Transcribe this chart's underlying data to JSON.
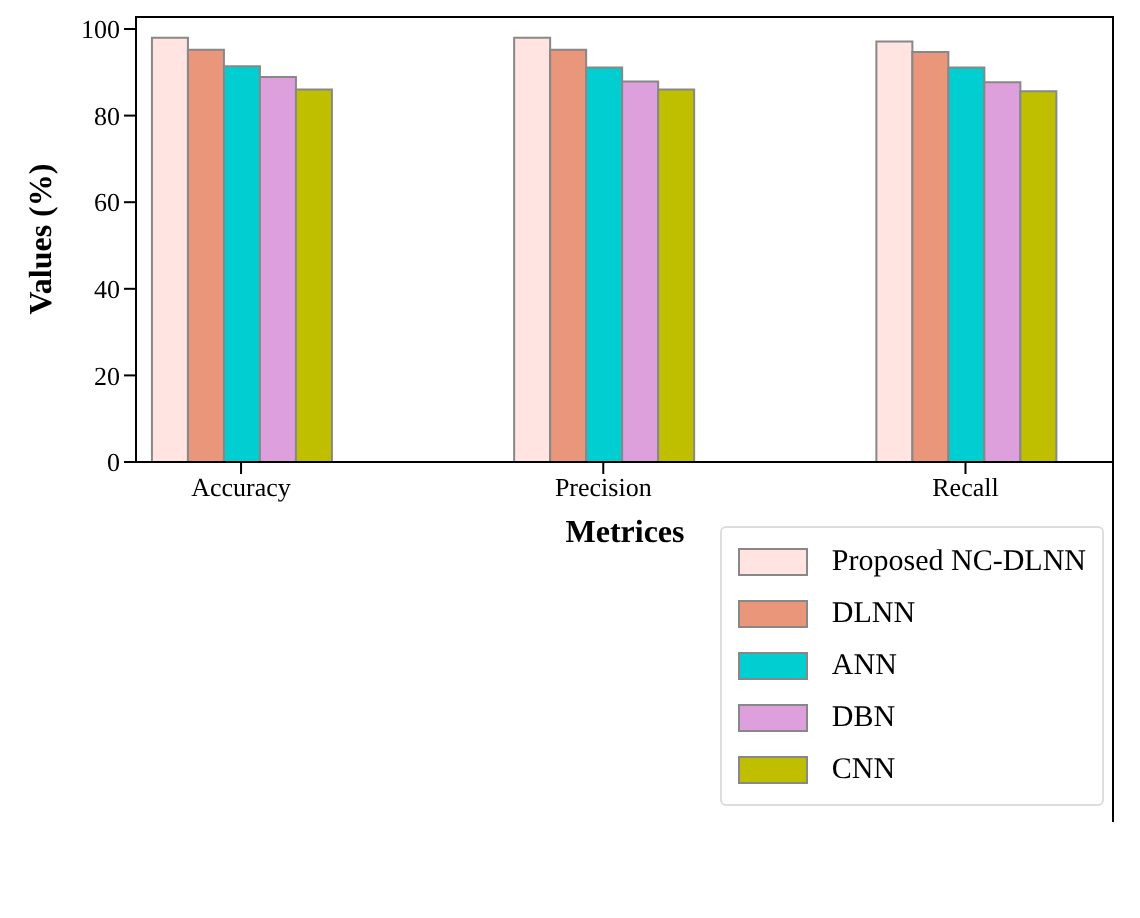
{
  "chart_data": {
    "type": "bar",
    "xlabel": "Metrices",
    "ylabel": "Values (%)",
    "categories": [
      "Accuracy",
      "Precision",
      "Recall"
    ],
    "series": [
      {
        "name": "Proposed NC-DLNN",
        "color": "#ffe4e1",
        "values": [
          98.0,
          98.0,
          97.1
        ]
      },
      {
        "name": "DLNN",
        "color": "#e9967a",
        "values": [
          95.2,
          95.2,
          94.7
        ]
      },
      {
        "name": "ANN",
        "color": "#00ced1",
        "values": [
          91.4,
          91.1,
          91.1
        ]
      },
      {
        "name": "DBN",
        "color": "#dda0dd",
        "values": [
          88.9,
          87.9,
          87.7
        ]
      },
      {
        "name": "CNN",
        "color": "#bfbf00",
        "values": [
          86.0,
          86.0,
          85.6
        ]
      }
    ],
    "ylim": [
      0,
      103
    ],
    "yticks": [
      0,
      20,
      40,
      60,
      80,
      100
    ],
    "grid": false,
    "legend": "bottom right"
  }
}
